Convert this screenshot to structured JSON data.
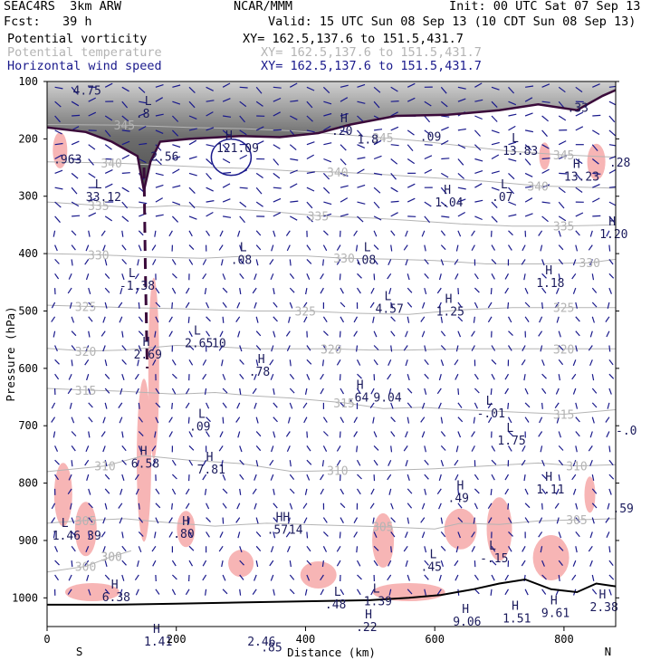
{
  "header": {
    "model_left": "SEAC4RS  3km ARW",
    "center": "NCAR/MMM",
    "init": "Init: 00 UTC Sat 07 Sep 13",
    "fcst": "Fcst:   39 h",
    "valid": "Valid: 15 UTC Sun 08 Sep 13 (10 CDT Sun 08 Sep 13)",
    "fields": [
      {
        "name": "Potential vorticity",
        "color": "#000000",
        "xy": "XY= 162.5,137.6 to 151.5,431.7"
      },
      {
        "name": "Potential temperature",
        "color": "#b4b4b4",
        "xy": "XY= 162.5,137.6 to 151.5,431.7"
      },
      {
        "name": "Horizontal wind speed",
        "color": "#1a1a8c",
        "xy": "XY= 162.5,137.6 to 151.5,431.7"
      }
    ]
  },
  "chart_data": {
    "type": "cross-section",
    "xlabel": "Distance (km)",
    "ylabel": "Pressure (hPa)",
    "xlim": [
      0,
      880
    ],
    "ylim": [
      1050,
      100
    ],
    "x_ticks": [
      0,
      200,
      400,
      600,
      800
    ],
    "y_ticks": [
      100,
      200,
      300,
      400,
      500,
      600,
      700,
      800,
      900,
      1000
    ],
    "endpoint_labels": {
      "left": "S",
      "right": "N"
    },
    "colors": {
      "pv_fill": "#f7b5b5",
      "theta": "#b4b4b4",
      "wind": "#1a1a8c",
      "terrain": "#000000",
      "dynamic_tropopause": "#3a0a3a"
    },
    "theta_contours": [
      {
        "label": "300",
        "points": [
          [
            0,
            955
          ],
          [
            60,
            945
          ],
          [
            100,
            928
          ],
          [
            130,
            918
          ]
        ]
      },
      {
        "label": "305",
        "points": [
          [
            0,
            870
          ],
          [
            60,
            865
          ],
          [
            120,
            862
          ],
          [
            180,
            868
          ],
          [
            260,
            875
          ],
          [
            340,
            870
          ],
          [
            420,
            873
          ],
          [
            520,
            876
          ],
          [
            600,
            880
          ],
          [
            640,
            870
          ],
          [
            700,
            872
          ],
          [
            760,
            866
          ],
          [
            820,
            864
          ],
          [
            880,
            862
          ]
        ]
      },
      {
        "label": "310",
        "points": [
          [
            0,
            780
          ],
          [
            90,
            770
          ],
          [
            150,
            752
          ],
          [
            220,
            760
          ],
          [
            300,
            766
          ],
          [
            380,
            780
          ],
          [
            450,
            778
          ],
          [
            520,
            778
          ],
          [
            600,
            775
          ],
          [
            680,
            770
          ],
          [
            760,
            765
          ],
          [
            820,
            770
          ],
          [
            880,
            768
          ]
        ]
      },
      {
        "label": "315",
        "points": [
          [
            0,
            635
          ],
          [
            60,
            638
          ],
          [
            120,
            640
          ],
          [
            200,
            645
          ],
          [
            260,
            642
          ],
          [
            320,
            648
          ],
          [
            380,
            652
          ],
          [
            460,
            660
          ],
          [
            520,
            670
          ],
          [
            580,
            668
          ],
          [
            640,
            672
          ],
          [
            720,
            676
          ],
          [
            800,
            680
          ],
          [
            880,
            672
          ]
        ]
      },
      {
        "label": "320",
        "points": [
          [
            0,
            565
          ],
          [
            60,
            570
          ],
          [
            120,
            568
          ],
          [
            200,
            560
          ],
          [
            260,
            562
          ],
          [
            320,
            566
          ],
          [
            380,
            566
          ],
          [
            440,
            566
          ],
          [
            500,
            568
          ],
          [
            560,
            568
          ],
          [
            640,
            566
          ],
          [
            720,
            566
          ],
          [
            800,
            566
          ],
          [
            880,
            566
          ]
        ]
      },
      {
        "label": "325",
        "points": [
          [
            0,
            490
          ],
          [
            60,
            492
          ],
          [
            120,
            494
          ],
          [
            200,
            496
          ],
          [
            260,
            498
          ],
          [
            320,
            500
          ],
          [
            400,
            500
          ],
          [
            480,
            504
          ],
          [
            560,
            506
          ],
          [
            640,
            498
          ],
          [
            720,
            494
          ],
          [
            800,
            494
          ],
          [
            880,
            494
          ]
        ]
      },
      {
        "label": "330",
        "points": [
          [
            0,
            400
          ],
          [
            80,
            402
          ],
          [
            160,
            406
          ],
          [
            240,
            408
          ],
          [
            320,
            404
          ],
          [
            400,
            404
          ],
          [
            460,
            408
          ],
          [
            540,
            410
          ],
          [
            600,
            412
          ],
          [
            680,
            418
          ],
          [
            760,
            418
          ],
          [
            840,
            416
          ],
          [
            880,
            410
          ]
        ]
      },
      {
        "label": "335",
        "points": [
          [
            0,
            310
          ],
          [
            80,
            316
          ],
          [
            140,
            320
          ],
          [
            200,
            316
          ],
          [
            280,
            322
          ],
          [
            340,
            326
          ],
          [
            420,
            334
          ],
          [
            500,
            338
          ],
          [
            560,
            342
          ],
          [
            640,
            348
          ],
          [
            720,
            352
          ],
          [
            800,
            352
          ],
          [
            880,
            350
          ]
        ]
      },
      {
        "label": "340",
        "points": [
          [
            0,
            240
          ],
          [
            100,
            242
          ],
          [
            180,
            246
          ],
          [
            260,
            250
          ],
          [
            320,
            252
          ],
          [
            380,
            256
          ],
          [
            450,
            258
          ],
          [
            520,
            262
          ],
          [
            600,
            268
          ],
          [
            680,
            274
          ],
          [
            760,
            282
          ],
          [
            880,
            286
          ]
        ]
      },
      {
        "label": "345",
        "points": [
          [
            0,
            175
          ],
          [
            120,
            176
          ],
          [
            220,
            180
          ],
          [
            300,
            182
          ],
          [
            380,
            186
          ],
          [
            450,
            192
          ],
          [
            520,
            198
          ],
          [
            580,
            204
          ],
          [
            640,
            212
          ],
          [
            720,
            222
          ],
          [
            800,
            228
          ],
          [
            880,
            232
          ]
        ]
      }
    ],
    "extrema": [
      {
        "t": "",
        "v": "4.75",
        "x": 40,
        "p": 120
      },
      {
        "t": "",
        "v": ".963",
        "x": 10,
        "p": 240
      },
      {
        "t": "L",
        "v": ".8",
        "x": 137,
        "p": 160
      },
      {
        "t": "",
        "v": "2.56",
        "x": 160,
        "p": 235
      },
      {
        "t": "H",
        "v": "121.09",
        "x": 262,
        "p": 220
      },
      {
        "t": "H",
        "v": ".20",
        "x": 440,
        "p": 190
      },
      {
        "t": "",
        "v": "1.8",
        "x": 480,
        "p": 205
      },
      {
        "t": "",
        "v": ".09",
        "x": 577,
        "p": 200
      },
      {
        "t": "L",
        "v": "13.83",
        "x": 705,
        "p": 225
      },
      {
        "t": "",
        "v": ".33",
        "x": 805,
        "p": 150
      },
      {
        "t": "H",
        "v": "13.23",
        "x": 800,
        "p": 270
      },
      {
        "t": "",
        "v": ".28",
        "x": 870,
        "p": 245
      },
      {
        "t": "L",
        "v": "33.12",
        "x": 60,
        "p": 305
      },
      {
        "t": "H",
        "v": "1.04",
        "x": 600,
        "p": 315
      },
      {
        "t": "L",
        "v": ".07",
        "x": 688,
        "p": 305
      },
      {
        "t": "H",
        "v": "1.20",
        "x": 855,
        "p": 370
      },
      {
        "t": "L",
        "v": ".08",
        "x": 284,
        "p": 415
      },
      {
        "t": "L",
        "v": ".08",
        "x": 476,
        "p": 415
      },
      {
        "t": "H",
        "v": "1.18",
        "x": 757,
        "p": 455
      },
      {
        "t": "L",
        "v": "-1.38",
        "x": 112,
        "p": 460
      },
      {
        "t": "L",
        "v": "4.57",
        "x": 508,
        "p": 500
      },
      {
        "t": "H",
        "v": "1.25",
        "x": 602,
        "p": 505
      },
      {
        "t": "L",
        "v": "2.65",
        "x": 213,
        "p": 560
      },
      {
        "t": "",
        "v": "10",
        "x": 255,
        "p": 560
      },
      {
        "t": "H",
        "v": "2.69",
        "x": 134,
        "p": 580
      },
      {
        "t": "H",
        "v": ".78",
        "x": 312,
        "p": 610
      },
      {
        "t": "H",
        "v": ".64",
        "x": 465,
        "p": 655
      },
      {
        "t": "",
        "v": "9.04",
        "x": 505,
        "p": 655
      },
      {
        "t": "L",
        "v": "-.01",
        "x": 665,
        "p": 682
      },
      {
        "t": "L",
        "v": ".09",
        "x": 220,
        "p": 705
      },
      {
        "t": "L",
        "v": "1.75",
        "x": 697,
        "p": 730
      },
      {
        "t": "",
        "v": "-.0",
        "x": 880,
        "p": 712
      },
      {
        "t": "H",
        "v": "6.58",
        "x": 130,
        "p": 770
      },
      {
        "t": "H",
        "v": "7.81",
        "x": 232,
        "p": 780
      },
      {
        "t": "H",
        "v": ".49",
        "x": 620,
        "p": 830
      },
      {
        "t": "H",
        "v": "1.11",
        "x": 757,
        "p": 815
      },
      {
        "t": "",
        "v": ".59",
        "x": 875,
        "p": 848
      },
      {
        "t": "L",
        "v": "1.46",
        "x": 8,
        "p": 895
      },
      {
        "t": "",
        "v": "39",
        "x": 62,
        "p": 895
      },
      {
        "t": "H",
        "v": ".80",
        "x": 195,
        "p": 892
      },
      {
        "t": "HH",
        "v": ".57",
        "x": 340,
        "p": 885
      },
      {
        "t": "",
        "v": "14",
        "x": 374,
        "p": 885
      },
      {
        "t": "L",
        "v": ".45",
        "x": 578,
        "p": 950
      },
      {
        "t": "L",
        "v": "-.15",
        "x": 670,
        "p": 935
      },
      {
        "t": "H",
        "v": "6.38",
        "x": 85,
        "p": 1003
      },
      {
        "t": "L",
        "v": ".48",
        "x": 430,
        "p": 1015
      },
      {
        "t": "L",
        "v": "1.39",
        "x": 490,
        "p": 1010
      },
      {
        "t": "H",
        "v": ".22",
        "x": 478,
        "p": 1055
      },
      {
        "t": "H",
        "v": "9.06",
        "x": 628,
        "p": 1045
      },
      {
        "t": "H",
        "v": "1.51",
        "x": 705,
        "p": 1040
      },
      {
        "t": "H",
        "v": "9.61",
        "x": 765,
        "p": 1030
      },
      {
        "t": "H",
        "v": "2.38",
        "x": 840,
        "p": 1020
      },
      {
        "t": "H",
        "v": "1.41",
        "x": 150,
        "p": 1080
      },
      {
        "t": "",
        "v": "2.46",
        "x": 310,
        "p": 1080
      },
      {
        "t": "",
        "v": ".85",
        "x": 331,
        "p": 1090
      }
    ]
  }
}
